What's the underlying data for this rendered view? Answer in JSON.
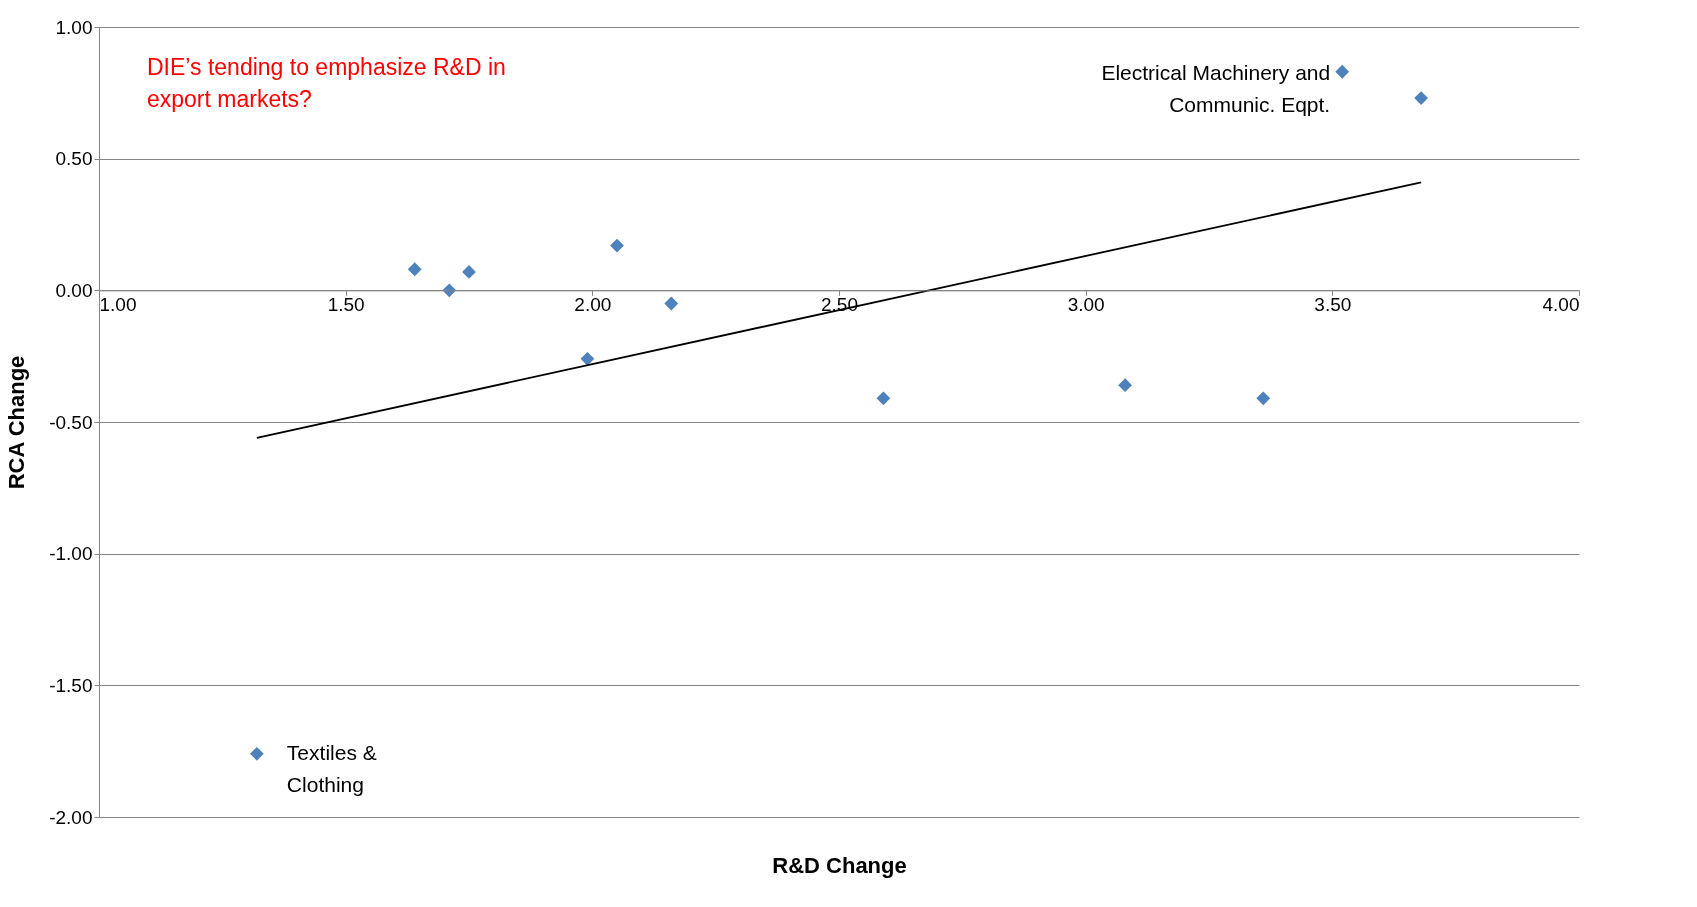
{
  "chart_data": {
    "type": "scatter",
    "xlabel": "R&D Change",
    "ylabel": "RCA Change",
    "xlim": [
      1,
      4
    ],
    "ylim": [
      -2,
      1
    ],
    "xticks": [
      {
        "value": 1,
        "label": "1.00"
      },
      {
        "value": 1.5,
        "label": "1.50"
      },
      {
        "value": 2,
        "label": "2.00"
      },
      {
        "value": 2.5,
        "label": "2.50"
      },
      {
        "value": 3,
        "label": "3.00"
      },
      {
        "value": 3.5,
        "label": "3.50"
      },
      {
        "value": 4,
        "label": "4.00"
      }
    ],
    "yticks": [
      {
        "value": -2,
        "label": "-2.00"
      },
      {
        "value": -1.5,
        "label": "-1.50"
      },
      {
        "value": -1,
        "label": "-1.00"
      },
      {
        "value": -0.5,
        "label": "-0.50"
      },
      {
        "value": 0,
        "label": "0.00"
      },
      {
        "value": 0.5,
        "label": "0.50"
      },
      {
        "value": 1,
        "label": "1.00"
      }
    ],
    "grid": "y",
    "legend": false,
    "series": [
      {
        "color": "#4f81bd",
        "marker": "diamond",
        "x": [
          1.64,
          1.71,
          1.75,
          2.05,
          2.16,
          1.99,
          2.59,
          3.08,
          3.36,
          3.52,
          3.68,
          1.32
        ],
        "values": [
          0.08,
          0.0,
          0.07,
          0.17,
          -0.05,
          -0.26,
          -0.41,
          -0.36,
          -0.41,
          0.83,
          0.73,
          -1.76
        ]
      },
      {
        "type": "line",
        "color": "#000000",
        "x": [
          1.32,
          3.68
        ],
        "values": [
          -0.56,
          0.41
        ]
      }
    ],
    "annotations": [
      "DIE’s tending to emphasize R&D in export markets?",
      {
        "text": "Electrical Machinery and Communic. Eqpt.",
        "x": 3.52,
        "y": 0.83
      },
      {
        "text": "Textiles & Clothing",
        "x": 1.32,
        "y": -1.76
      }
    ]
  }
}
